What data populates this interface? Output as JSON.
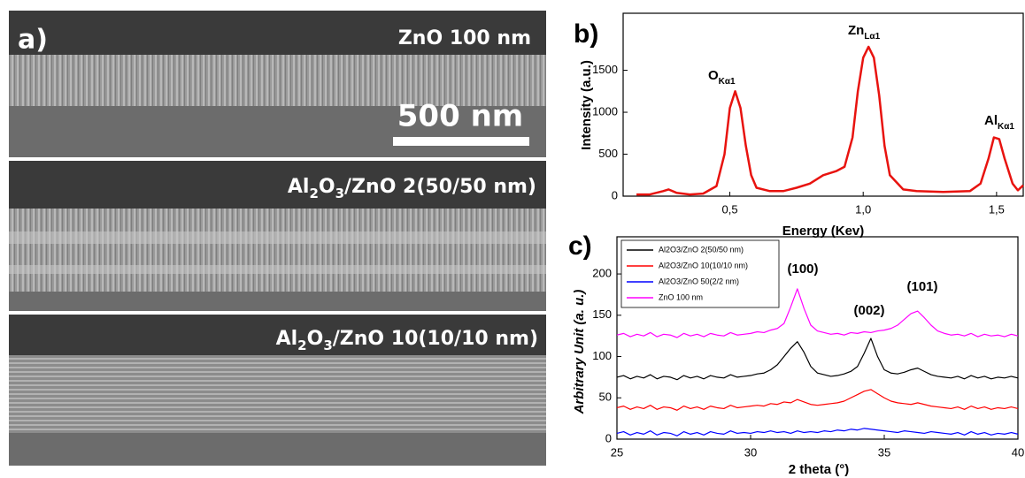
{
  "panel_a": {
    "label": "a)",
    "scale_bar": "500 nm",
    "images": [
      {
        "label": [
          "ZnO 100 nm"
        ]
      },
      {
        "label": [
          "Al",
          "2",
          "O",
          "3",
          "/ZnO 2(50/50 nm)"
        ]
      },
      {
        "label": [
          "Al",
          "2",
          "O",
          "3",
          "/ZnO 10(10/10 nm)"
        ]
      }
    ]
  },
  "chart_data": [
    {
      "type": "line",
      "panel_label": "b)",
      "x_label": "Energy (Kev)",
      "y_label": "Intensity (a.u.)",
      "color": "#e8130f",
      "annotations": [
        {
          "text": "O",
          "sub": "Kα1"
        },
        {
          "text": "Zn",
          "sub": "Lα1"
        },
        {
          "text": "Al",
          "sub": "Kα1"
        }
      ],
      "x": [
        0.15,
        0.2,
        0.25,
        0.27,
        0.3,
        0.35,
        0.4,
        0.45,
        0.48,
        0.5,
        0.52,
        0.54,
        0.56,
        0.58,
        0.6,
        0.65,
        0.7,
        0.75,
        0.8,
        0.85,
        0.9,
        0.93,
        0.96,
        0.98,
        1.0,
        1.02,
        1.04,
        1.06,
        1.08,
        1.1,
        1.15,
        1.2,
        1.3,
        1.4,
        1.44,
        1.47,
        1.49,
        1.51,
        1.53,
        1.56,
        1.58,
        1.6
      ],
      "values": [
        20,
        20,
        60,
        80,
        40,
        20,
        30,
        120,
        500,
        1050,
        1250,
        1050,
        600,
        250,
        100,
        60,
        60,
        100,
        150,
        250,
        300,
        350,
        700,
        1250,
        1650,
        1780,
        1650,
        1200,
        600,
        250,
        80,
        60,
        50,
        60,
        150,
        450,
        700,
        680,
        450,
        150,
        70,
        130
      ],
      "xlim": [
        0.1,
        1.6
      ],
      "xticks": [
        {
          "value": 0.5,
          "label": "0,5"
        },
        {
          "value": 1.0,
          "label": "1,0"
        },
        {
          "value": 1.5,
          "label": "1,5"
        }
      ],
      "ylim": [
        0,
        2180
      ],
      "yticks": [
        0,
        500,
        1000,
        1500
      ]
    },
    {
      "type": "line",
      "panel_label": "c)",
      "x_label": "2 theta (°)",
      "y_label": "Arbitrary Unit (a. u.)",
      "legend": "upper left",
      "annotations": [
        {
          "text": "(100)"
        },
        {
          "text": "(002)"
        },
        {
          "text": "(101)"
        }
      ],
      "x": [
        25,
        25.25,
        25.5,
        25.75,
        26,
        26.25,
        26.5,
        26.75,
        27,
        27.25,
        27.5,
        27.75,
        28,
        28.25,
        28.5,
        28.75,
        29,
        29.25,
        29.5,
        29.75,
        30,
        30.25,
        30.5,
        30.75,
        31,
        31.25,
        31.5,
        31.75,
        32,
        32.25,
        32.5,
        32.75,
        33,
        33.25,
        33.5,
        33.75,
        34,
        34.25,
        34.5,
        34.75,
        35,
        35.25,
        35.5,
        35.75,
        36,
        36.25,
        36.5,
        36.75,
        37,
        37.25,
        37.5,
        37.75,
        38,
        38.25,
        38.5,
        38.75,
        39,
        39.25,
        39.5,
        39.75,
        40
      ],
      "series": [
        {
          "name": "Al2O3/ZnO 2(50/50 nm)",
          "color": "#000000",
          "values": [
            75,
            77,
            73,
            76,
            74,
            78,
            73,
            76,
            75,
            72,
            77,
            74,
            76,
            73,
            77,
            75,
            74,
            78,
            75,
            76,
            77,
            79,
            80,
            84,
            90,
            100,
            110,
            118,
            105,
            88,
            80,
            78,
            76,
            77,
            79,
            82,
            88,
            104,
            122,
            100,
            84,
            80,
            79,
            81,
            84,
            86,
            82,
            78,
            76,
            75,
            74,
            76,
            73,
            77,
            74,
            76,
            73,
            75,
            74,
            76,
            74
          ]
        },
        {
          "name": "Al2O3/ZnO 10(10/10 nm)",
          "color": "#ff0000",
          "values": [
            38,
            40,
            36,
            39,
            37,
            41,
            36,
            39,
            38,
            35,
            40,
            37,
            39,
            36,
            40,
            38,
            37,
            41,
            38,
            39,
            40,
            41,
            40,
            43,
            42,
            45,
            44,
            48,
            45,
            42,
            41,
            42,
            43,
            44,
            46,
            50,
            54,
            58,
            60,
            55,
            50,
            46,
            44,
            43,
            42,
            44,
            42,
            40,
            39,
            38,
            37,
            39,
            36,
            40,
            37,
            39,
            36,
            38,
            37,
            39,
            37
          ]
        },
        {
          "name": "Al2O3/ZnO 50(2/2 nm)",
          "color": "#0000ff",
          "values": [
            7,
            9,
            5,
            8,
            6,
            10,
            5,
            8,
            7,
            4,
            9,
            6,
            8,
            5,
            9,
            7,
            6,
            10,
            7,
            8,
            7,
            9,
            8,
            10,
            8,
            9,
            7,
            10,
            8,
            9,
            8,
            10,
            9,
            11,
            10,
            12,
            11,
            13,
            12,
            11,
            10,
            9,
            8,
            10,
            9,
            8,
            7,
            9,
            8,
            7,
            6,
            8,
            5,
            9,
            6,
            8,
            5,
            7,
            6,
            8,
            6
          ]
        },
        {
          "name": "ZnO 100 nm",
          "color": "#ff00ff",
          "values": [
            126,
            128,
            124,
            127,
            125,
            129,
            124,
            127,
            126,
            123,
            128,
            125,
            127,
            124,
            128,
            126,
            125,
            129,
            126,
            127,
            128,
            130,
            129,
            132,
            134,
            140,
            160,
            182,
            158,
            138,
            131,
            129,
            127,
            128,
            126,
            129,
            128,
            130,
            129,
            131,
            132,
            134,
            138,
            145,
            152,
            155,
            147,
            138,
            131,
            128,
            126,
            127,
            125,
            128,
            124,
            127,
            125,
            126,
            124,
            127,
            125
          ]
        }
      ],
      "xlim": [
        25,
        40
      ],
      "xticks": [
        25,
        30,
        35,
        40
      ],
      "ylim": [
        0,
        245
      ],
      "yticks": [
        0,
        50,
        100,
        150,
        200
      ]
    }
  ]
}
